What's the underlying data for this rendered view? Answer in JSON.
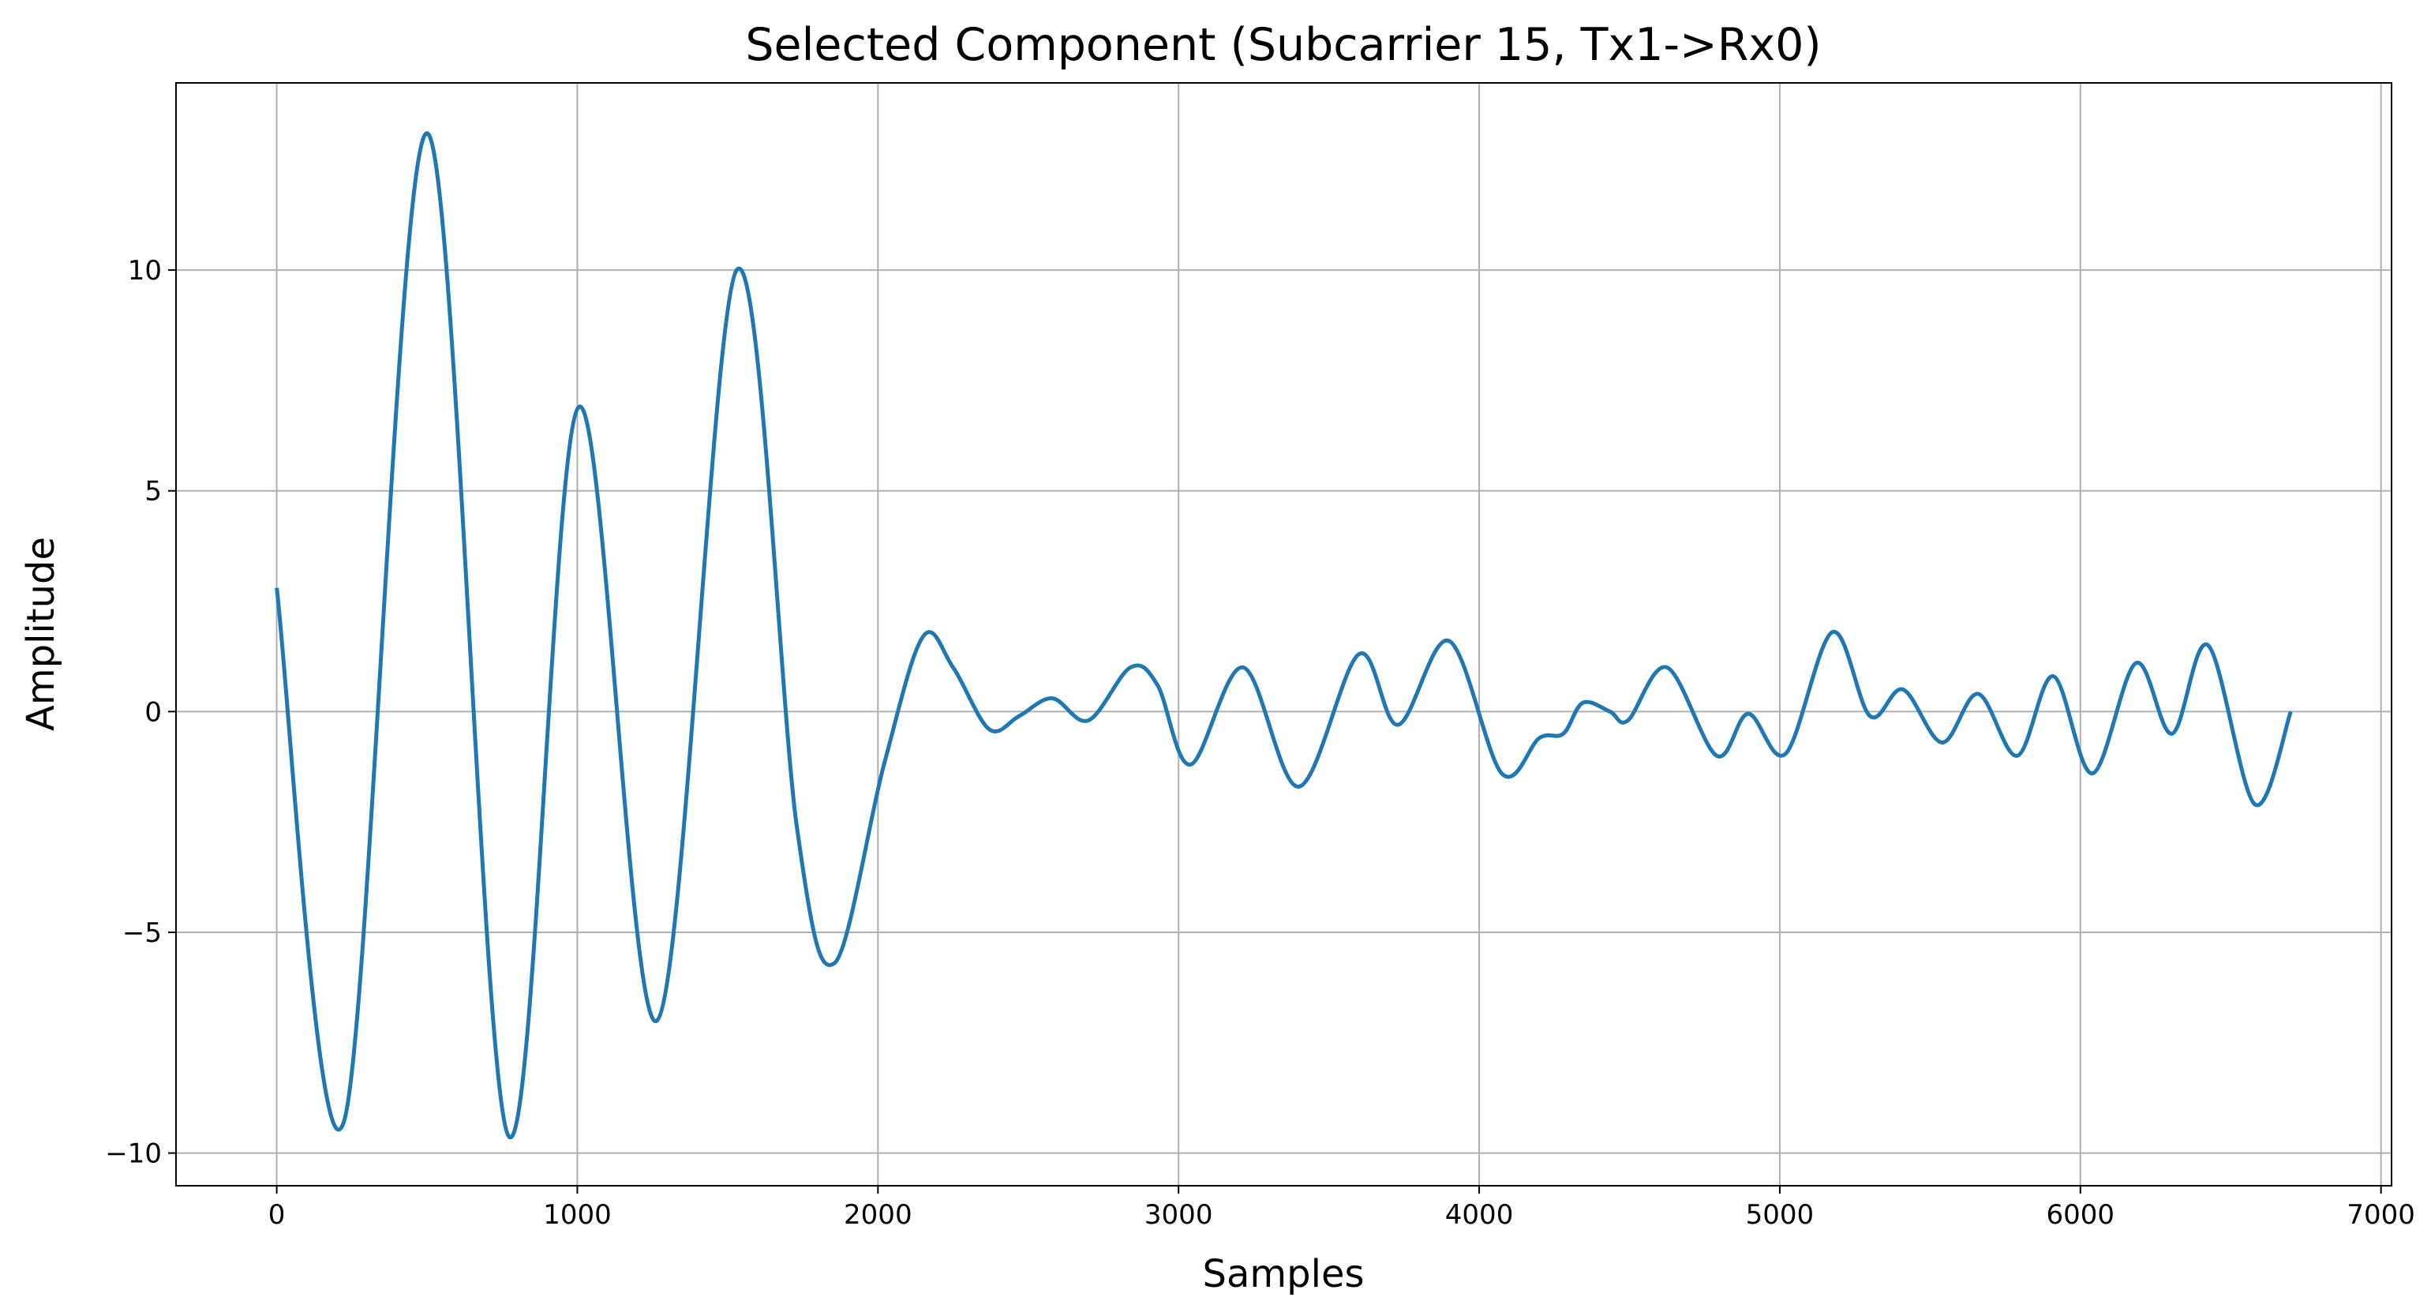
{
  "chart_data": {
    "type": "line",
    "title": "Selected Component (Subcarrier 15, Tx1->Rx0)",
    "x_label": "Samples",
    "y_label": "Amplitude",
    "x": [
      0,
      223,
      500,
      770,
      1005,
      1265,
      1530,
      1730,
      1855,
      2020,
      2150,
      2250,
      2370,
      2470,
      2580,
      2700,
      2840,
      2930,
      3040,
      3215,
      3400,
      3600,
      3730,
      3900,
      4075,
      4200,
      4280,
      4345,
      4435,
      4495,
      4625,
      4790,
      4895,
      5020,
      5175,
      5300,
      5410,
      5540,
      5660,
      5790,
      5910,
      6040,
      6185,
      6305,
      6425,
      6580,
      6700
    ],
    "series": [
      {
        "name": "Amplitude",
        "color": "#1f77b4",
        "values": [
          2.8,
          -9.3,
          13.1,
          -9.6,
          6.9,
          -7.0,
          10.0,
          -2.6,
          -5.7,
          -1.2,
          1.7,
          1.0,
          -0.4,
          -0.1,
          0.3,
          -0.2,
          1.0,
          0.6,
          -1.2,
          1.0,
          -1.7,
          1.3,
          -0.3,
          1.6,
          -1.4,
          -0.6,
          -0.5,
          0.2,
          0.0,
          -0.2,
          1.0,
          -1.0,
          -0.05,
          -0.95,
          1.8,
          -0.1,
          0.5,
          -0.7,
          0.4,
          -1.0,
          0.8,
          -1.4,
          1.1,
          -0.5,
          1.5,
          -2.1,
          0.0
        ]
      }
    ],
    "xlim": [
      -335,
      7035
    ],
    "ylim": [
      -10.74,
      14.24
    ],
    "xticks": [
      0,
      1000,
      2000,
      3000,
      4000,
      5000,
      6000,
      7000
    ],
    "yticks": [
      {
        "value": -10,
        "label": "−10"
      },
      {
        "value": -5,
        "label": "−5"
      },
      0,
      5,
      10
    ],
    "grid": true
  }
}
